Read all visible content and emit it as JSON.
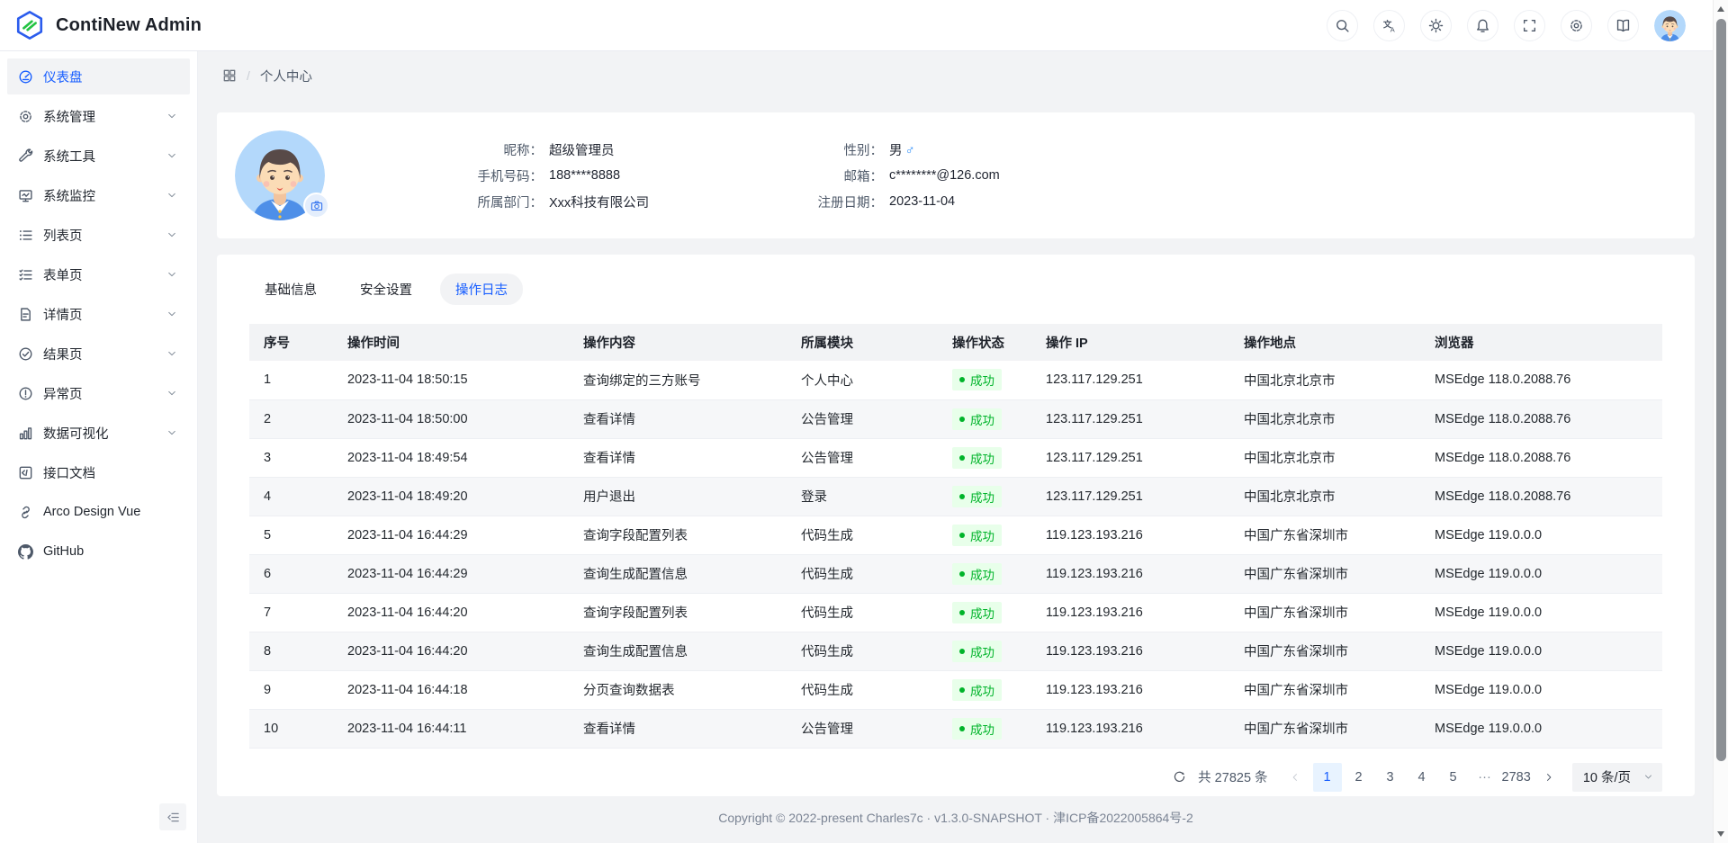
{
  "app": {
    "title": "ContiNew Admin"
  },
  "header": {
    "actions": [
      {
        "name": "search",
        "icon": "search"
      },
      {
        "name": "language",
        "icon": "translate"
      },
      {
        "name": "theme",
        "icon": "sun"
      },
      {
        "name": "notifications",
        "icon": "bell"
      },
      {
        "name": "fullscreen",
        "icon": "fullscreen"
      },
      {
        "name": "settings",
        "icon": "gear"
      },
      {
        "name": "docs",
        "icon": "book"
      }
    ]
  },
  "sidebar": {
    "items": [
      {
        "label": "仪表盘",
        "icon": "dashboard",
        "active": true,
        "expandable": false
      },
      {
        "label": "系统管理",
        "icon": "gear",
        "active": false,
        "expandable": true
      },
      {
        "label": "系统工具",
        "icon": "wrench",
        "active": false,
        "expandable": true
      },
      {
        "label": "系统监控",
        "icon": "monitor",
        "active": false,
        "expandable": true
      },
      {
        "label": "列表页",
        "icon": "list",
        "active": false,
        "expandable": true
      },
      {
        "label": "表单页",
        "icon": "form",
        "active": false,
        "expandable": true
      },
      {
        "label": "详情页",
        "icon": "file",
        "active": false,
        "expandable": true
      },
      {
        "label": "结果页",
        "icon": "check-circle",
        "active": false,
        "expandable": true
      },
      {
        "label": "异常页",
        "icon": "warning-circle",
        "active": false,
        "expandable": true
      },
      {
        "label": "数据可视化",
        "icon": "bar-chart",
        "active": false,
        "expandable": true
      },
      {
        "label": "接口文档",
        "icon": "api",
        "active": false,
        "expandable": false
      },
      {
        "label": "Arco Design Vue",
        "icon": "link",
        "active": false,
        "expandable": false
      },
      {
        "label": "GitHub",
        "icon": "github",
        "active": false,
        "expandable": false
      }
    ]
  },
  "breadcrumb": {
    "separator": "/",
    "page": "个人中心"
  },
  "profile": {
    "fields": [
      {
        "label": "昵称：",
        "value": "超级管理员"
      },
      {
        "label": "性别：",
        "value": "男",
        "value_suffix": "♂"
      },
      {
        "label": "手机号码：",
        "value": "188****8888"
      },
      {
        "label": "邮箱：",
        "value": "c********@126.com"
      },
      {
        "label": "所属部门：",
        "value": "Xxx科技有限公司"
      },
      {
        "label": "注册日期：",
        "value": "2023-11-04"
      }
    ]
  },
  "tabs": [
    {
      "label": "基础信息",
      "active": false
    },
    {
      "label": "安全设置",
      "active": false
    },
    {
      "label": "操作日志",
      "active": true
    }
  ],
  "table": {
    "columns": [
      "序号",
      "操作时间",
      "操作内容",
      "所属模块",
      "操作状态",
      "操作 IP",
      "操作地点",
      "浏览器"
    ],
    "rows": [
      {
        "no": "1",
        "time": "2023-11-04 18:50:15",
        "content": "查询绑定的三方账号",
        "module": "个人中心",
        "status": "成功",
        "ip": "123.117.129.251",
        "location": "中国北京北京市",
        "browser": "MSEdge 118.0.2088.76"
      },
      {
        "no": "2",
        "time": "2023-11-04 18:50:00",
        "content": "查看详情",
        "module": "公告管理",
        "status": "成功",
        "ip": "123.117.129.251",
        "location": "中国北京北京市",
        "browser": "MSEdge 118.0.2088.76"
      },
      {
        "no": "3",
        "time": "2023-11-04 18:49:54",
        "content": "查看详情",
        "module": "公告管理",
        "status": "成功",
        "ip": "123.117.129.251",
        "location": "中国北京北京市",
        "browser": "MSEdge 118.0.2088.76"
      },
      {
        "no": "4",
        "time": "2023-11-04 18:49:20",
        "content": "用户退出",
        "module": "登录",
        "status": "成功",
        "ip": "123.117.129.251",
        "location": "中国北京北京市",
        "browser": "MSEdge 118.0.2088.76"
      },
      {
        "no": "5",
        "time": "2023-11-04 16:44:29",
        "content": "查询字段配置列表",
        "module": "代码生成",
        "status": "成功",
        "ip": "119.123.193.216",
        "location": "中国广东省深圳市",
        "browser": "MSEdge 119.0.0.0"
      },
      {
        "no": "6",
        "time": "2023-11-04 16:44:29",
        "content": "查询生成配置信息",
        "module": "代码生成",
        "status": "成功",
        "ip": "119.123.193.216",
        "location": "中国广东省深圳市",
        "browser": "MSEdge 119.0.0.0"
      },
      {
        "no": "7",
        "time": "2023-11-04 16:44:20",
        "content": "查询字段配置列表",
        "module": "代码生成",
        "status": "成功",
        "ip": "119.123.193.216",
        "location": "中国广东省深圳市",
        "browser": "MSEdge 119.0.0.0"
      },
      {
        "no": "8",
        "time": "2023-11-04 16:44:20",
        "content": "查询生成配置信息",
        "module": "代码生成",
        "status": "成功",
        "ip": "119.123.193.216",
        "location": "中国广东省深圳市",
        "browser": "MSEdge 119.0.0.0"
      },
      {
        "no": "9",
        "time": "2023-11-04 16:44:18",
        "content": "分页查询数据表",
        "module": "代码生成",
        "status": "成功",
        "ip": "119.123.193.216",
        "location": "中国广东省深圳市",
        "browser": "MSEdge 119.0.0.0"
      },
      {
        "no": "10",
        "time": "2023-11-04 16:44:11",
        "content": "查看详情",
        "module": "公告管理",
        "status": "成功",
        "ip": "119.123.193.216",
        "location": "中国广东省深圳市",
        "browser": "MSEdge 119.0.0.0"
      }
    ]
  },
  "pagination": {
    "total": "共 27825 条",
    "pages": [
      "1",
      "2",
      "3",
      "4",
      "5"
    ],
    "ellipsis": "···",
    "last_page": "2783",
    "active_page": "1",
    "page_size": "10 条/页"
  },
  "footer": {
    "copyright": "Copyright © 2022-present Charles7c · v1.3.0-SNAPSHOT · 津ICP备2022005864号-2"
  },
  "colors": {
    "primary": "#165dff",
    "success": "#00b42a",
    "success_bg": "#e8ffea",
    "male_symbol": "#3491fa"
  }
}
